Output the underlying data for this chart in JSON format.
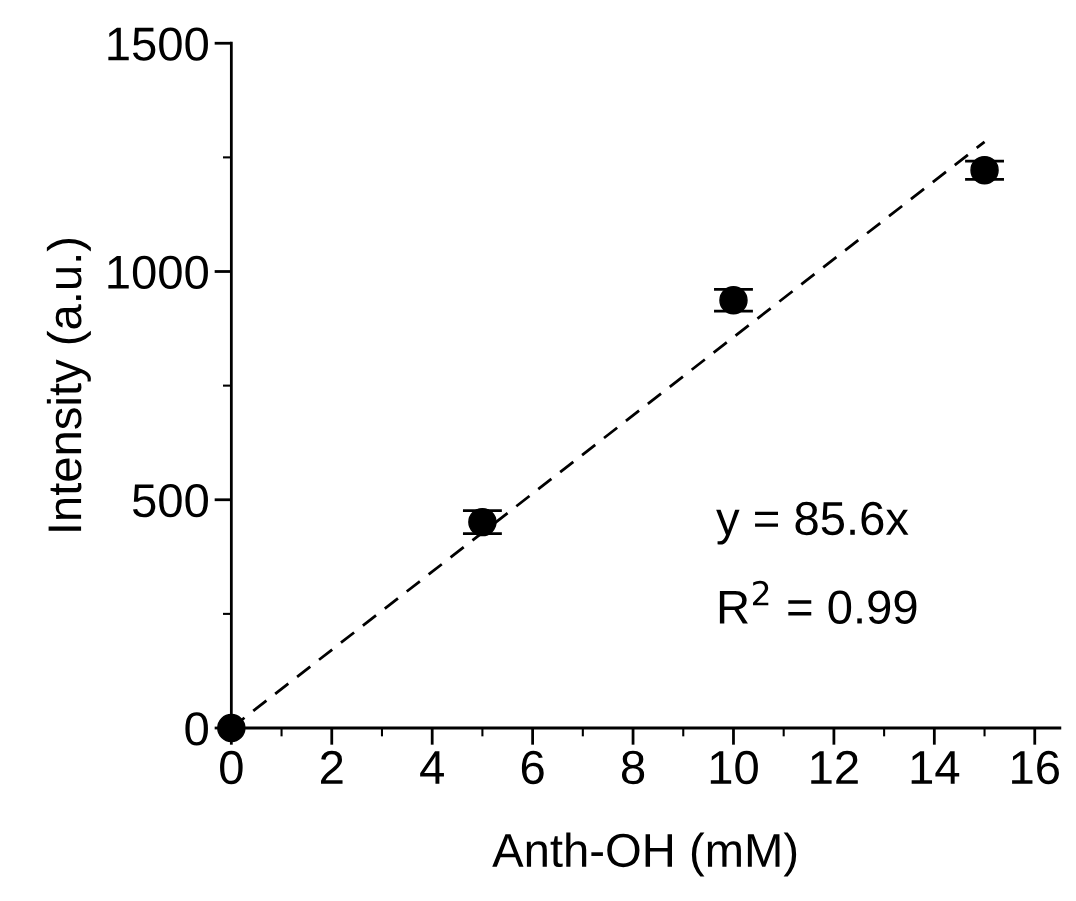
{
  "chart_data": {
    "type": "scatter",
    "xlabel": "Anth-OH (mM)",
    "ylabel": "Intensity (a.u.)",
    "xlim": [
      0,
      16.5
    ],
    "xticks": [
      0,
      2,
      4,
      6,
      8,
      10,
      12,
      14,
      16
    ],
    "ylim": [
      0,
      1500
    ],
    "yticks": [
      0,
      500,
      1000,
      1500
    ],
    "grid": false,
    "legend": false,
    "series": [
      {
        "color": "#000000",
        "marker": "circle",
        "x": [
          0,
          5,
          10,
          15
        ],
        "values": [
          0,
          451,
          937,
          1222
        ],
        "errors": [
          null,
          25,
          24,
          20
        ]
      },
      {
        "type": "line",
        "color": "#000000",
        "marker": "none",
        "line_style": "dashed",
        "x": [
          0,
          15
        ],
        "values": [
          0,
          1284
        ]
      }
    ],
    "annotations": [
      {
        "text": "y = 85.6x"
      },
      {
        "text": "R$^{2}$ = 0.99"
      }
    ]
  }
}
